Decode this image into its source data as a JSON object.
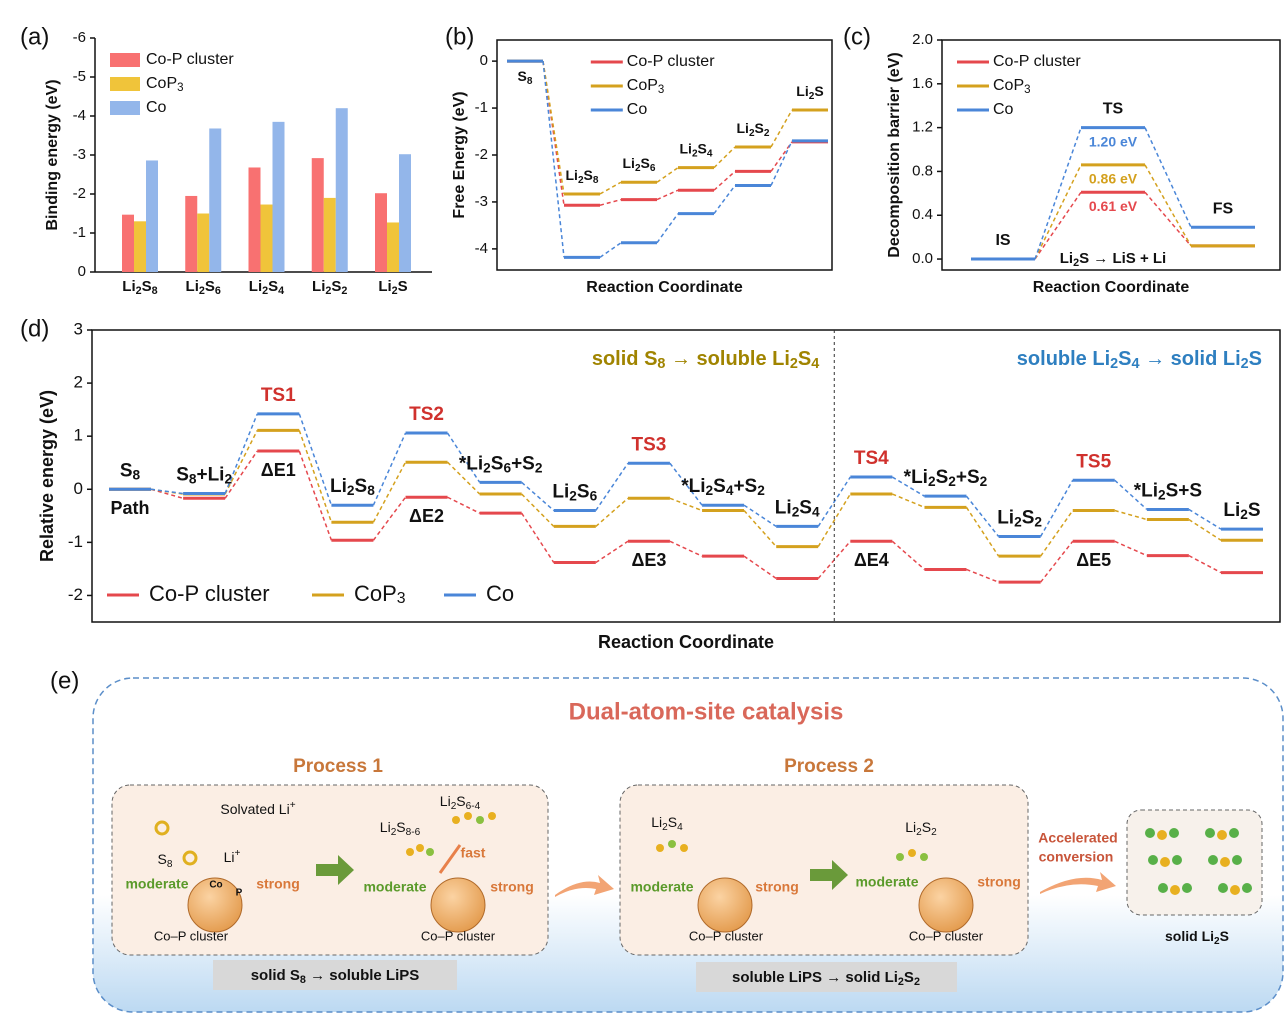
{
  "chart_data": [
    {
      "type": "bar",
      "panel_label": "(a)",
      "ylabel": "Binding energy (eV)",
      "categories": [
        "Li2S8",
        "Li2S6",
        "Li2S4",
        "Li2S2",
        "Li2S"
      ],
      "series": [
        {
          "name": "Co-P cluster",
          "color": "#f87171",
          "values": [
            -1.47,
            -1.95,
            -2.68,
            -2.92,
            -2.02
          ]
        },
        {
          "name": "CoP3",
          "color": "#f0c43a",
          "values": [
            -1.3,
            -1.5,
            -1.73,
            -1.9,
            -1.27
          ]
        },
        {
          "name": "Co",
          "color": "#93b6ea",
          "values": [
            -2.86,
            -3.68,
            -3.85,
            -4.2,
            -3.02
          ]
        }
      ],
      "ylim": [
        0,
        -6
      ],
      "yticks": [
        0,
        -1,
        -2,
        -3,
        -4,
        -5,
        -6
      ],
      "legend": "upper left"
    },
    {
      "type": "profile",
      "panel_label": "(b)",
      "ylabel": "Free Energy (eV)",
      "xlabel": "Reaction Coordinate",
      "categories": [
        "S8",
        "Li2S8",
        "Li2S6",
        "Li2S4",
        "Li2S2",
        "Li2S"
      ],
      "series": [
        {
          "name": "Co-P cluster",
          "color": "#e5484d",
          "values": [
            0,
            -3.07,
            -2.95,
            -2.75,
            -2.35,
            -1.72
          ]
        },
        {
          "name": "CoP3",
          "color": "#d4a11e",
          "values": [
            0,
            -2.83,
            -2.58,
            -2.27,
            -1.83,
            -1.04
          ]
        },
        {
          "name": "Co",
          "color": "#4a86d8",
          "values": [
            0,
            -4.18,
            -3.87,
            -3.25,
            -2.65,
            -1.7
          ]
        }
      ],
      "ylim": [
        -4.45,
        0.45
      ],
      "yticks": [
        0,
        -1,
        -2,
        -3,
        -4
      ],
      "legend": "upper center"
    },
    {
      "type": "profile",
      "panel_label": "(c)",
      "ylabel": "Decomposition barrier (eV)",
      "xlabel": "Reaction Coordinate",
      "categories": [
        "IS",
        "TS",
        "FS"
      ],
      "annotation": "Li2S → LiS + Li",
      "series": [
        {
          "name": "Co-P cluster",
          "color": "#e5484d",
          "values": [
            0,
            0.61,
            0.12
          ],
          "value_labels": [
            null,
            "0.61 eV",
            null
          ]
        },
        {
          "name": "CoP3",
          "color": "#d4a11e",
          "values": [
            0,
            0.86,
            0.12
          ],
          "value_labels": [
            null,
            "0.86 eV",
            null
          ]
        },
        {
          "name": "Co",
          "color": "#4a86d8",
          "values": [
            0,
            1.2,
            0.29
          ],
          "value_labels": [
            null,
            "1.20 eV",
            null
          ]
        }
      ],
      "ylim": [
        -0.1,
        2.0
      ],
      "yticks": [
        {
          "value": 0,
          "label": "0.0"
        },
        {
          "value": 0.4,
          "label": "0.4"
        },
        {
          "value": 0.8,
          "label": "0.8"
        },
        {
          "value": 1.2,
          "label": "1.2"
        },
        {
          "value": 1.6,
          "label": "1.6"
        },
        {
          "value": 2.0,
          "label": "2.0"
        }
      ],
      "legend": "upper left"
    },
    {
      "type": "profile",
      "panel_label": "(d)",
      "ylabel": "Relative energy (eV)",
      "xlabel": "Reaction Coordinate",
      "categories": [
        "S8",
        "S8+Li2",
        "TS1",
        "Li2S8",
        "TS2",
        "*Li2S6+S2",
        "Li2S6",
        "TS3",
        "*Li2S4+S2",
        "Li2S4",
        "TS4",
        "*Li2S2+S2",
        "Li2S2",
        "TS5",
        "*Li2S+S",
        "Li2S"
      ],
      "annotations": [
        "Path",
        "ΔE1",
        "ΔE2",
        "ΔE3",
        "ΔE4",
        "ΔE5"
      ],
      "sections": [
        "solid S8 → soluble Li2S4",
        "soluble Li2S4 → solid Li2S"
      ],
      "series": [
        {
          "name": "Co-P cluster",
          "color": "#e5484d",
          "values": [
            0,
            -0.17,
            0.72,
            -0.96,
            -0.15,
            -0.45,
            -1.38,
            -0.98,
            -1.26,
            -1.68,
            -0.98,
            -1.51,
            -1.75,
            -0.98,
            -1.25,
            -1.57
          ]
        },
        {
          "name": "CoP3",
          "color": "#d4a11e",
          "values": [
            0,
            -0.09,
            1.11,
            -0.62,
            0.51,
            -0.09,
            -0.7,
            -0.17,
            -0.4,
            -1.08,
            -0.09,
            -0.34,
            -1.26,
            -0.4,
            -0.57,
            -0.96
          ]
        },
        {
          "name": "Co",
          "color": "#4a86d8",
          "values": [
            0,
            -0.08,
            1.42,
            -0.3,
            1.06,
            0.13,
            -0.4,
            0.49,
            -0.3,
            -0.7,
            0.23,
            -0.13,
            -0.89,
            0.17,
            -0.38,
            -0.75
          ]
        }
      ],
      "ylim": [
        -2.5,
        3
      ],
      "yticks": [
        -2,
        -1,
        0,
        1,
        2,
        3
      ],
      "legend": "lower left"
    }
  ],
  "diagram": {
    "panel_label": "(e)",
    "title": "Dual-atom-site catalysis",
    "process_1": {
      "title": "Process 1",
      "caption": "solid S8 → soluble LiPS",
      "step_1": {
        "ion": "Solvated Li+",
        "species": "S8",
        "ion_short": "Li+",
        "weak": "moderate",
        "strong": "strong",
        "atom_1": "Co",
        "atom_2": "P",
        "cluster": "Co–P cluster"
      },
      "step_2": {
        "species": "Li2S8-6",
        "product": "Li2S6-4",
        "rate": "fast",
        "weak": "moderate",
        "strong": "strong",
        "cluster": "Co–P cluster"
      }
    },
    "process_2": {
      "title": "Process 2",
      "caption": "soluble LiPS → solid Li2S2",
      "step_1": {
        "species": "Li2S4",
        "weak": "moderate",
        "strong": "strong",
        "cluster": "Co–P cluster"
      },
      "step_2": {
        "species": "Li2S2",
        "weak": "moderate",
        "strong": "strong",
        "cluster": "Co–P cluster"
      }
    },
    "product": {
      "arrow_label": [
        "Accelerated",
        "conversion"
      ],
      "label": "solid Li2S"
    }
  }
}
